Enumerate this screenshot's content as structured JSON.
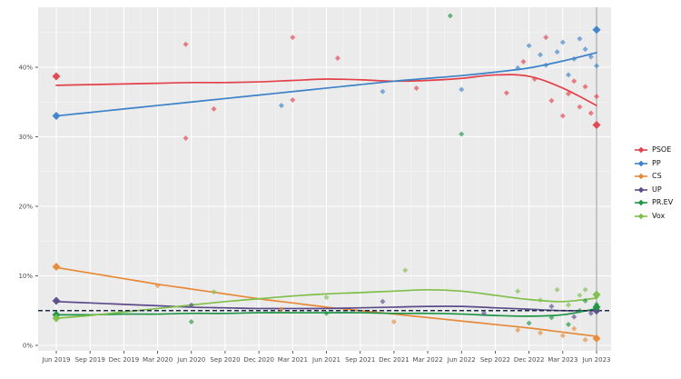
{
  "figure": {
    "background": "#ffffff",
    "panel_background": "#ebebeb",
    "grid_color": "#ffffff",
    "axis_text_color": "#4d4d4d",
    "tick_color": "#333333"
  },
  "chart_data": {
    "type": "line",
    "title": "",
    "xlabel": "",
    "ylabel": "",
    "x_tick_labels": [
      "Jun 2019",
      "Sep 2019",
      "Dec 2019",
      "Mar 2020",
      "Jun 2020",
      "Sep 2020",
      "Dec 2020",
      "Mar 2021",
      "Jun 2021",
      "Sep 2021",
      "Dec 2021",
      "Mar 2022",
      "Jun 2022",
      "Sep 2022",
      "Dec 2022",
      "Mar 2023",
      "Jun 2023"
    ],
    "x_months": [
      0,
      3,
      6,
      9,
      12,
      15,
      18,
      21,
      24,
      27,
      30,
      33,
      36,
      39,
      42,
      45,
      48
    ],
    "y_ticks": [
      0,
      10,
      20,
      30,
      40
    ],
    "y_tick_labels": [
      "0%",
      "10%",
      "20%",
      "30%",
      "40%"
    ],
    "y_minor": [
      5,
      15,
      25,
      35,
      45
    ],
    "ylim": [
      -1.5,
      48.6
    ],
    "grid": true,
    "legend_position": "right",
    "reference_line": {
      "y": 5,
      "style": "dashed",
      "color": "#1c2a4a"
    },
    "vertical_line": {
      "x_month": 48,
      "color": "#9a9a9a"
    },
    "series": [
      {
        "name": "PSOE",
        "color": "#e2414b",
        "trend": [
          37.4,
          37.5,
          37.6,
          37.7,
          37.8,
          37.8,
          37.9,
          38.1,
          38.3,
          38.2,
          38.0,
          38.1,
          38.4,
          38.9,
          38.7,
          37.0,
          34.5
        ],
        "start_marker": [
          0,
          38.7
        ],
        "end_marker": [
          48,
          31.7
        ],
        "points": [
          [
            11.5,
            43.3
          ],
          [
            11.5,
            29.8
          ],
          [
            14,
            34.0
          ],
          [
            21,
            44.3
          ],
          [
            21,
            35.3
          ],
          [
            25,
            41.3
          ],
          [
            32,
            37.0
          ],
          [
            40,
            36.3
          ],
          [
            41.5,
            40.8
          ],
          [
            42.5,
            38.3
          ],
          [
            43.5,
            44.3
          ],
          [
            44,
            35.2
          ],
          [
            45,
            33.0
          ],
          [
            45.5,
            36.2
          ],
          [
            46,
            38.0
          ],
          [
            46.5,
            34.3
          ],
          [
            47,
            37.2
          ],
          [
            47.5,
            33.4
          ],
          [
            48,
            35.8
          ]
        ]
      },
      {
        "name": "PP",
        "color": "#3c82c8",
        "trend": [
          33.0,
          33.5,
          34.0,
          34.5,
          35.0,
          35.5,
          36.0,
          36.5,
          37.0,
          37.5,
          38.0,
          38.4,
          38.8,
          39.3,
          39.9,
          40.9,
          42.1
        ],
        "start_marker": [
          0,
          33.0
        ],
        "end_marker": [
          48,
          45.4
        ],
        "points": [
          [
            20,
            34.5
          ],
          [
            29,
            36.5
          ],
          [
            36,
            36.8
          ],
          [
            41,
            39.9
          ],
          [
            42,
            43.1
          ],
          [
            43,
            41.8
          ],
          [
            43.5,
            40.3
          ],
          [
            44.5,
            42.2
          ],
          [
            45,
            43.6
          ],
          [
            45.5,
            38.9
          ],
          [
            46,
            41.2
          ],
          [
            46.5,
            44.1
          ],
          [
            47,
            42.6
          ],
          [
            47.5,
            41.5
          ],
          [
            48,
            40.2
          ]
        ]
      },
      {
        "name": "CS",
        "color": "#e78a38",
        "trend": [
          11.2,
          10.4,
          9.6,
          8.8,
          8.1,
          7.4,
          6.7,
          6.1,
          5.5,
          5.0,
          4.5,
          4.0,
          3.5,
          3.0,
          2.5,
          1.9,
          1.3
        ],
        "start_marker": [
          0,
          11.3
        ],
        "end_marker": [
          48,
          1.0
        ],
        "points": [
          [
            9,
            8.6
          ],
          [
            20,
            5.2
          ],
          [
            30,
            3.4
          ],
          [
            41,
            2.2
          ],
          [
            43,
            1.8
          ],
          [
            45,
            1.4
          ],
          [
            46,
            2.4
          ],
          [
            47,
            0.8
          ]
        ]
      },
      {
        "name": "UP",
        "color": "#5b4b8a",
        "trend": [
          6.3,
          6.1,
          5.9,
          5.7,
          5.5,
          5.4,
          5.3,
          5.3,
          5.3,
          5.4,
          5.5,
          5.6,
          5.6,
          5.4,
          5.2,
          5.0,
          5.0
        ],
        "start_marker": [
          0,
          6.4
        ],
        "end_marker": [
          48,
          5.0
        ],
        "points": [
          [
            12,
            5.8
          ],
          [
            29,
            6.3
          ],
          [
            38,
            4.6
          ],
          [
            44,
            5.6
          ],
          [
            46,
            4.1
          ],
          [
            47.5,
            4.6
          ]
        ]
      },
      {
        "name": "PR.EV",
        "color": "#1e9444",
        "trend": [
          4.4,
          4.4,
          4.5,
          4.5,
          4.6,
          4.6,
          4.7,
          4.7,
          4.7,
          4.7,
          4.6,
          4.6,
          4.5,
          4.3,
          4.2,
          4.4,
          5.3
        ],
        "start_marker": [
          0,
          4.4
        ],
        "end_marker": [
          48,
          5.5
        ],
        "points": [
          [
            12,
            3.4
          ],
          [
            24,
            4.6
          ],
          [
            35,
            47.4
          ],
          [
            36,
            30.4
          ],
          [
            42,
            3.2
          ],
          [
            44,
            4.0
          ],
          [
            45.5,
            3.0
          ],
          [
            46.5,
            5.0
          ],
          [
            47,
            6.4
          ],
          [
            48,
            5.9
          ]
        ]
      },
      {
        "name": "Vox",
        "color": "#7fbf4a",
        "trend": [
          3.9,
          4.3,
          4.8,
          5.3,
          5.8,
          6.3,
          6.7,
          7.1,
          7.4,
          7.6,
          7.8,
          8.0,
          7.8,
          7.2,
          6.6,
          6.3,
          6.8
        ],
        "start_marker": [
          0,
          3.9
        ],
        "end_marker": [
          48,
          7.3
        ],
        "points": [
          [
            14,
            7.7
          ],
          [
            24,
            6.9
          ],
          [
            31,
            10.8
          ],
          [
            41,
            7.8
          ],
          [
            43,
            6.5
          ],
          [
            44.5,
            8.0
          ],
          [
            45.5,
            5.8
          ],
          [
            46.5,
            7.2
          ],
          [
            47,
            8.0
          ],
          [
            48,
            7.0
          ]
        ]
      }
    ],
    "legend_entries": [
      "PSOE",
      "PP",
      "CS",
      "UP",
      "PR.EV",
      "Vox"
    ]
  }
}
